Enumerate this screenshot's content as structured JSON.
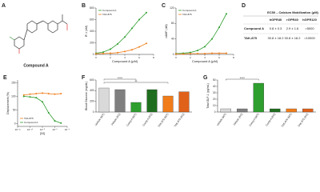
{
  "panel_a": {
    "label": "A",
    "compound": "Compound A"
  },
  "panel_d": {
    "label": "D",
    "table": {
      "title": "EC50 – Calcium Mobilization (μM)",
      "columns": [
        "hGPR40",
        "rGPR40",
        "hGPR120"
      ],
      "rows": [
        {
          "name": "Compound A",
          "color": "#2e9e2e",
          "cells": [
            "0.8 ± 0.3",
            "2.9 ± 1.6",
            ">5000"
          ]
        },
        {
          "name": "TAK-875",
          "color": "#f07d1a",
          "cells": [
            "30.8 ± 18.2",
            "30.8 ± 18.2",
            ">10000"
          ]
        }
      ]
    }
  },
  "chart_data": [
    {
      "panel": "B",
      "type": "line",
      "xlabel": "Compound A (μM)",
      "ylabel": "IP-1 (nM)",
      "x": [
        0,
        1,
        2,
        3,
        4,
        5,
        6,
        7
      ],
      "xlim": [
        0,
        8
      ],
      "xticks": [
        0,
        2,
        4,
        6,
        8
      ],
      "ylim": [
        0,
        800
      ],
      "yticks": [
        0,
        200,
        400,
        600,
        800
      ],
      "legend": "upper-left",
      "series": [
        {
          "name": "Compound A",
          "color": "#2e9e2e",
          "values": [
            20,
            40,
            90,
            180,
            300,
            450,
            600,
            720
          ]
        },
        {
          "name": "TAK-875",
          "color": "#f07d1a",
          "values": [
            10,
            15,
            20,
            30,
            50,
            80,
            130,
            190
          ]
        }
      ]
    },
    {
      "panel": "C",
      "type": "line",
      "xlabel": "Compound A (μM)",
      "ylabel": "cAMP (nM)",
      "x": [
        0,
        1,
        2,
        3,
        4,
        5,
        6,
        7
      ],
      "xlim": [
        0,
        8
      ],
      "xticks": [
        0,
        2,
        4,
        6,
        8
      ],
      "ylim": [
        0,
        120
      ],
      "yticks": [
        0,
        40,
        80,
        120
      ],
      "legend": "upper-left",
      "series": [
        {
          "name": "Compound A",
          "color": "#2e9e2e",
          "values": [
            2,
            3,
            5,
            10,
            20,
            40,
            70,
            105
          ]
        },
        {
          "name": "TAK-875",
          "color": "#f07d1a",
          "values": [
            1,
            1,
            2,
            2,
            2,
            3,
            3,
            3
          ]
        }
      ]
    },
    {
      "panel": "E",
      "type": "line",
      "xlabel": "[M]",
      "ylabel": "Displacement (%)",
      "xlog": true,
      "x": [
        1e-11,
        1e-10,
        1e-09,
        1e-08,
        1e-07,
        1e-06,
        1e-05
      ],
      "xlim": [
        1e-12,
        0.0001
      ],
      "xticks": [
        {
          "value": 1e-12,
          "label": "10⁻¹²"
        },
        {
          "value": 1e-10,
          "label": "10⁻¹⁰"
        },
        {
          "value": 1e-08,
          "label": "10⁻⁸"
        },
        {
          "value": 1e-06,
          "label": "10⁻⁶"
        },
        {
          "value": 0.0001,
          "label": "10⁻⁴"
        }
      ],
      "ylim": [
        -10,
        160
      ],
      "yticks": [
        0,
        50,
        100,
        150
      ],
      "legend": "lower-left",
      "series": [
        {
          "name": "TAK-875",
          "color": "#f07d1a",
          "values": [
            105,
            108,
            110,
            112,
            110,
            108,
            110
          ]
        },
        {
          "name": "Compound A",
          "color": "#2e9e2e",
          "values": [
            100,
            98,
            95,
            80,
            40,
            10,
            2
          ]
        }
      ]
    },
    {
      "panel": "F",
      "type": "bar",
      "ylabel": "Blood Glucose (mg/dL)",
      "categories": [
        "Vehicle (WT)",
        "Vehicle (KO)",
        "Comp A (WT)",
        "Comp A (KO)",
        "TAK-875 (WT)",
        "TAK-875 (KO)"
      ],
      "values": [
        450,
        420,
        180,
        420,
        300,
        380
      ],
      "colors": [
        "#d9d9d9",
        "#7f7f7f",
        "#2e9e2e",
        "#1f6e1f",
        "#f07d1a",
        "#e0611a"
      ],
      "ylim": [
        0,
        600
      ],
      "yticks": [
        0,
        200,
        400,
        600
      ],
      "annotations": [
        "****",
        "**"
      ]
    },
    {
      "panel": "G",
      "type": "bar",
      "ylabel": "Total GLP-1 (pg/mL)",
      "categories": [
        "Vehicle (WT)",
        "Vehicle (KO)",
        "Comp A (WT)",
        "Comp A (KO)",
        "TAK-875 (WT)",
        "TAK-875 (KO)"
      ],
      "values": [
        5,
        5,
        45,
        5,
        5,
        5
      ],
      "colors": [
        "#d9d9d9",
        "#7f7f7f",
        "#2e9e2e",
        "#1f6e1f",
        "#f07d1a",
        "#e0611a"
      ],
      "ylim": [
        0,
        50
      ],
      "yticks": [
        0,
        10,
        20,
        30,
        40,
        50
      ],
      "annotations": [
        "****"
      ]
    }
  ]
}
